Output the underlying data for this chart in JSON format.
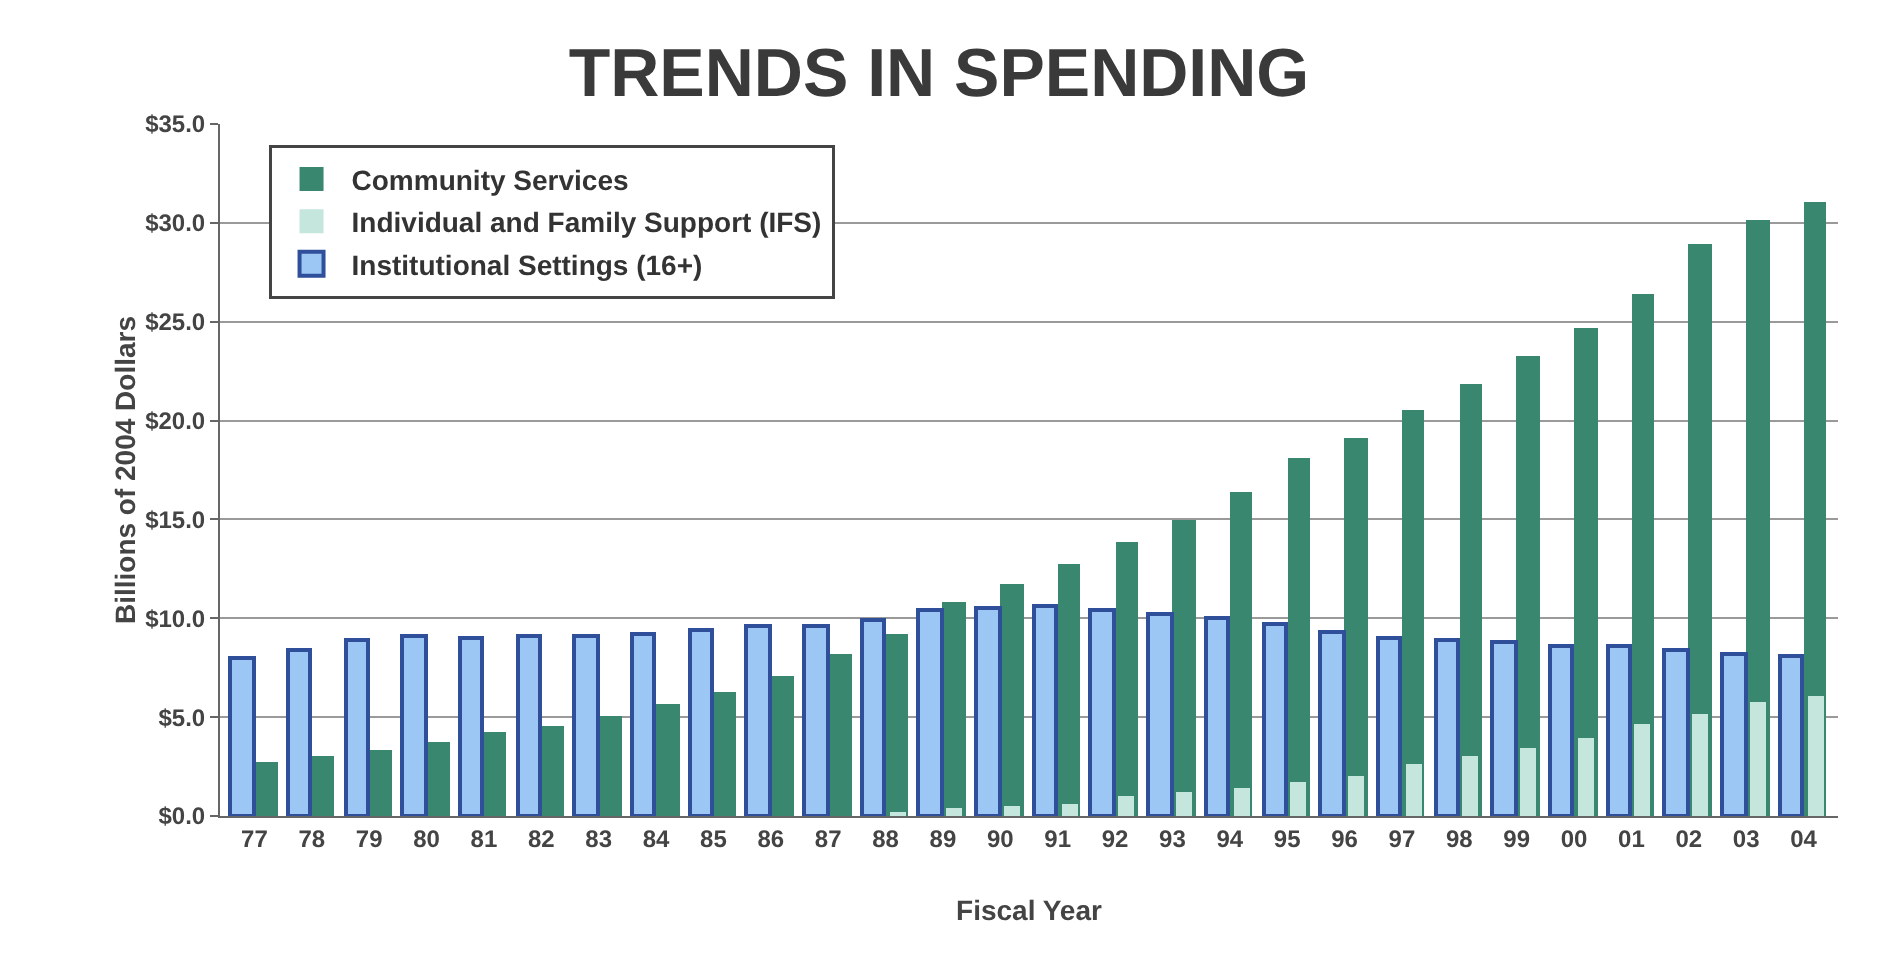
{
  "chart_data": {
    "type": "bar",
    "title": "TRENDS IN SPENDING",
    "xlabel": "Fiscal Year",
    "ylabel": "Billions of 2004 Dollars",
    "categories": [
      "77",
      "78",
      "79",
      "80",
      "81",
      "82",
      "83",
      "84",
      "85",
      "86",
      "87",
      "88",
      "89",
      "90",
      "91",
      "92",
      "93",
      "94",
      "95",
      "96",
      "97",
      "98",
      "99",
      "00",
      "01",
      "02",
      "03",
      "04"
    ],
    "series": [
      {
        "name": "Community Services",
        "color": "#38876e",
        "values": [
          2.7,
          3.0,
          3.3,
          3.7,
          4.2,
          4.6,
          5.1,
          5.7,
          6.3,
          7.1,
          8.2,
          9.2,
          10.8,
          11.7,
          12.7,
          13.9,
          15.0,
          16.4,
          18.1,
          19.1,
          20.5,
          21.8,
          23.3,
          24.7,
          26.4,
          28.9,
          30.1,
          31.1
        ]
      },
      {
        "name": "Individual and Family Support (IFS)",
        "color": "#c4e6dc",
        "values": [
          null,
          null,
          null,
          null,
          null,
          null,
          null,
          null,
          null,
          null,
          null,
          0.2,
          0.4,
          0.5,
          0.6,
          1.0,
          1.2,
          1.4,
          1.7,
          2.0,
          2.6,
          3.0,
          3.4,
          3.9,
          4.7,
          5.2,
          5.8,
          6.1
        ]
      },
      {
        "name": "Institutional Settings (16+)",
        "color": "#9cc6f4",
        "values": [
          8.0,
          8.4,
          8.9,
          9.1,
          9.0,
          9.1,
          9.1,
          9.2,
          9.4,
          9.6,
          9.6,
          9.9,
          10.4,
          10.5,
          10.6,
          10.4,
          10.2,
          10.0,
          9.7,
          9.3,
          9.0,
          8.9,
          8.8,
          8.6,
          8.6,
          8.4,
          8.2,
          8.1
        ]
      }
    ],
    "ylim": [
      0,
      35
    ],
    "yticks": [
      {
        "value": 0,
        "label": "$0.0"
      },
      {
        "value": 5,
        "label": "$5.0"
      },
      {
        "value": 10,
        "label": "$10.0"
      },
      {
        "value": 15,
        "label": "$15.0"
      },
      {
        "value": 20,
        "label": "$20.0"
      },
      {
        "value": 25,
        "label": "$25.0"
      },
      {
        "value": 30,
        "label": "$30.0"
      },
      {
        "value": 35,
        "label": "$35.0"
      }
    ],
    "grid": "y",
    "legend": "top left"
  }
}
